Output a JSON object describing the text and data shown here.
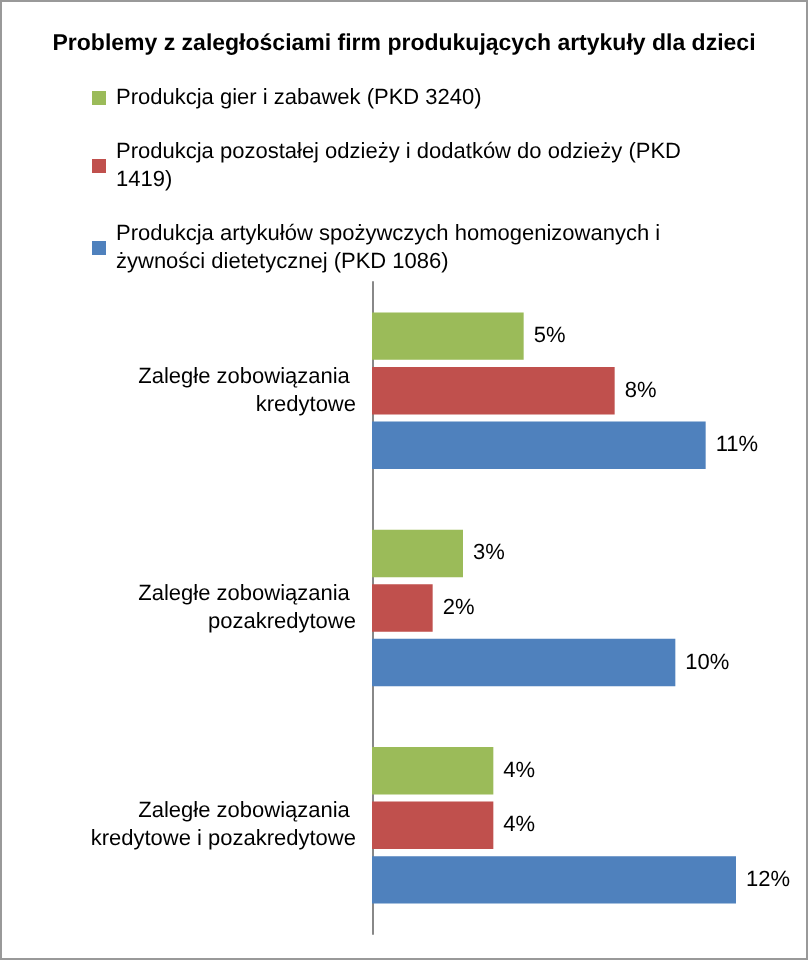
{
  "chart_data": {
    "type": "bar",
    "orientation": "horizontal",
    "title": "Problemy z zaległościami firm produkujących artykuły dla dzieci",
    "categories": [
      "Zaległe zobowiązania kredytowe",
      "Zaległe zobowiązania pozakredytowe",
      "Zaległe zobowiązania kredytowe i pozakredytowe"
    ],
    "series": [
      {
        "name": "Produkcja gier i zabawek (PKD 3240)",
        "color": "#9bbb59",
        "values": [
          5,
          3,
          4
        ],
        "value_labels": [
          "5%",
          "3%",
          "4%"
        ]
      },
      {
        "name": "Produkcja pozostałej odzieży i dodatków do odzieży (PKD 1419)",
        "color": "#c0504d",
        "values": [
          8,
          2,
          4
        ],
        "value_labels": [
          "8%",
          "2%",
          "4%"
        ]
      },
      {
        "name": "Produkcja artykułów spożywczych homogenizowanych i żywności dietetycznej (PKD 1086)",
        "color": "#4f81bd",
        "values": [
          11,
          10,
          12
        ],
        "value_labels": [
          "11%",
          "10%",
          "12%"
        ]
      }
    ],
    "legend": "top left",
    "grid": false
  }
}
